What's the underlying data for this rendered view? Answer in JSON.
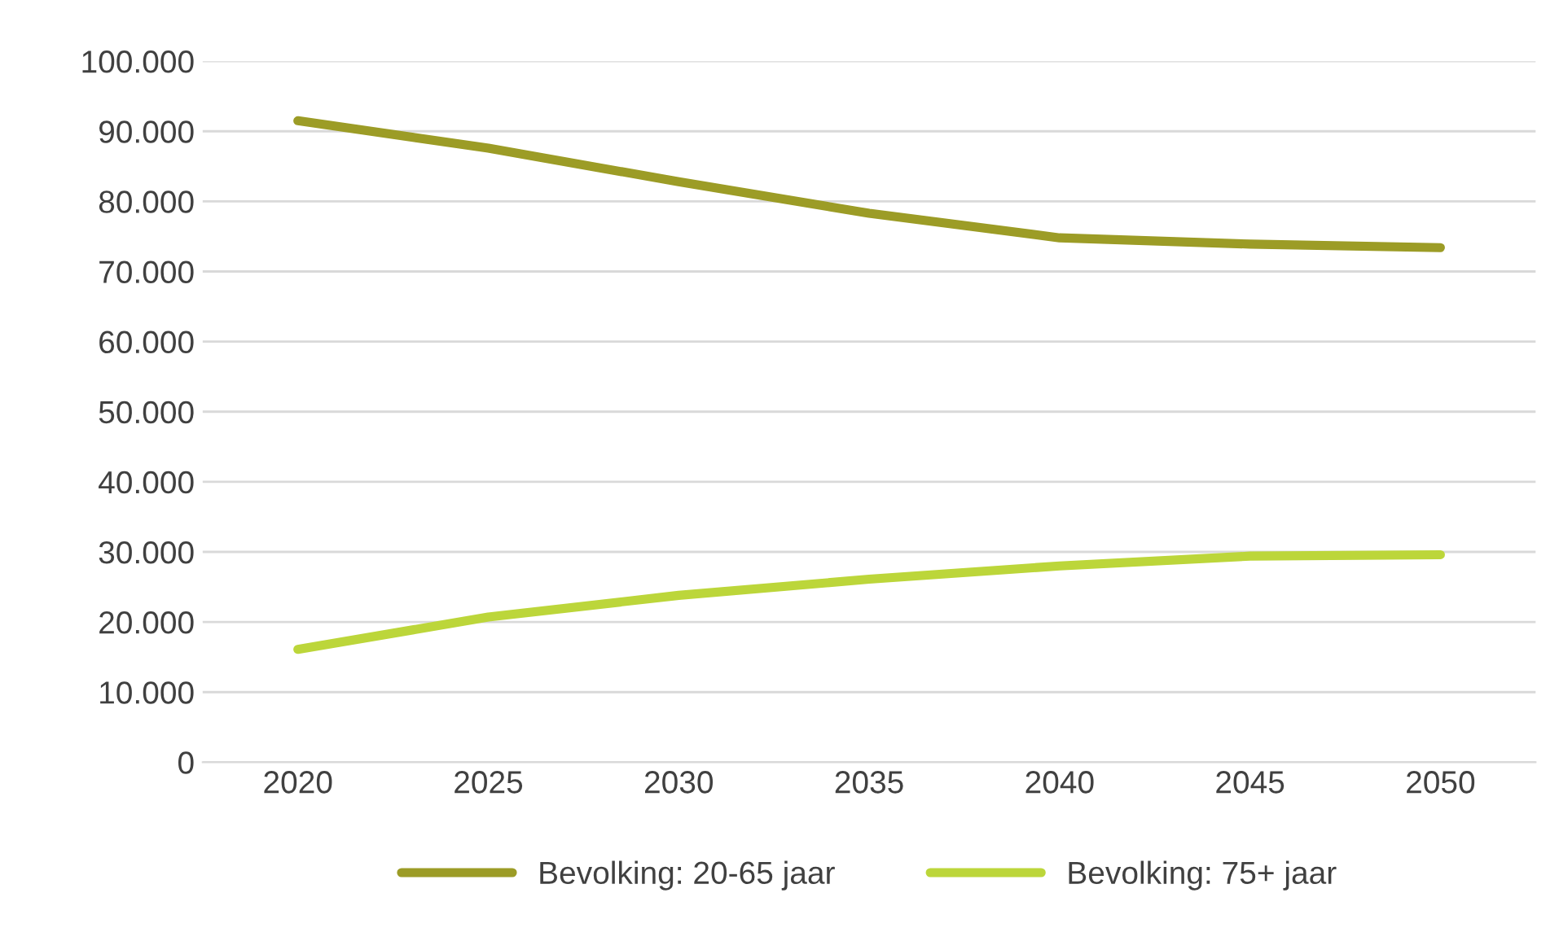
{
  "chart_data": {
    "type": "line",
    "categories": [
      "2020",
      "2025",
      "2030",
      "2035",
      "2040",
      "2045",
      "2050"
    ],
    "series": [
      {
        "name": "Bevolking: 20-65 jaar",
        "color": "#9c9c26",
        "values": [
          91500,
          87600,
          82800,
          78300,
          74800,
          73900,
          73400
        ]
      },
      {
        "name": "Bevolking: 75+ jaar",
        "color": "#bcd63a",
        "values": [
          16100,
          20700,
          23800,
          26100,
          28000,
          29400,
          29600
        ]
      }
    ],
    "ylim": [
      0,
      100000
    ],
    "yticks": [
      0,
      {
        "value": 10000,
        "label": "10.000"
      },
      {
        "value": 20000,
        "label": "20.000"
      },
      {
        "value": 30000,
        "label": "30.000"
      },
      {
        "value": 40000,
        "label": "40.000"
      },
      {
        "value": 50000,
        "label": "50.000"
      },
      {
        "value": 60000,
        "label": "60.000"
      },
      {
        "value": 70000,
        "label": "70.000"
      },
      {
        "value": 80000,
        "label": "80.000"
      },
      {
        "value": 90000,
        "label": "90.000"
      },
      {
        "value": 100000,
        "label": "100.000"
      }
    ],
    "grid": "y",
    "legend": "bottom",
    "marker": "none",
    "line_style": "solid"
  }
}
